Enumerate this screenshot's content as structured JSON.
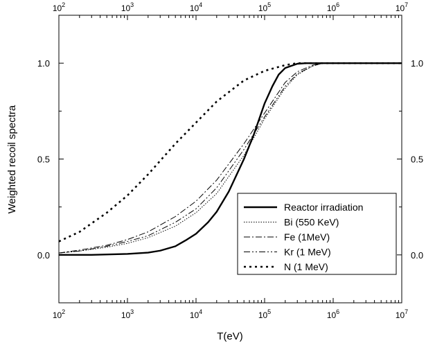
{
  "chart_data": {
    "type": "line",
    "xlabel": "T(eV)",
    "ylabel": "Weighted recoil spectra",
    "x_scale": "log",
    "xlim": [
      100,
      10000000
    ],
    "ylim": [
      -0.25,
      1.25
    ],
    "grid": false,
    "legend_position": "bottom-right",
    "x_ticks": [
      {
        "value": 100,
        "base": "10",
        "exp": "2"
      },
      {
        "value": 1000,
        "base": "10",
        "exp": "3"
      },
      {
        "value": 10000,
        "base": "10",
        "exp": "4"
      },
      {
        "value": 100000,
        "base": "10",
        "exp": "5"
      },
      {
        "value": 1000000,
        "base": "10",
        "exp": "6"
      },
      {
        "value": 10000000,
        "base": "10",
        "exp": "7"
      }
    ],
    "y_ticks": [
      {
        "value": 0.0,
        "label": "0.0"
      },
      {
        "value": 0.5,
        "label": "0.5"
      },
      {
        "value": 1.0,
        "label": "1.0"
      }
    ],
    "series": [
      {
        "name": "Reactor irradiation",
        "color": "#000000",
        "style": "solid-thick",
        "x": [
          100,
          300,
          1000,
          2000,
          3000,
          5000,
          7000,
          10000,
          15000,
          20000,
          30000,
          50000,
          70000,
          100000,
          130000,
          160000,
          200000,
          300000,
          400000,
          10000000
        ],
        "y": [
          0.0,
          0.0,
          0.005,
          0.012,
          0.022,
          0.045,
          0.075,
          0.11,
          0.17,
          0.225,
          0.33,
          0.5,
          0.63,
          0.79,
          0.88,
          0.94,
          0.975,
          0.997,
          1.0,
          1.0
        ]
      },
      {
        "name": "Bi (550 KeV)",
        "color": "#000000",
        "style": "dotted",
        "x": [
          100,
          200,
          500,
          1000,
          2000,
          5000,
          10000,
          20000,
          50000,
          100000,
          200000,
          300000,
          500000,
          700000,
          10000000
        ],
        "y": [
          0.01,
          0.02,
          0.04,
          0.06,
          0.09,
          0.15,
          0.22,
          0.32,
          0.52,
          0.71,
          0.87,
          0.94,
          0.985,
          1.0,
          1.0
        ]
      },
      {
        "name": "Fe (1MeV)",
        "color": "#000000",
        "style": "dashdot",
        "x": [
          100,
          200,
          500,
          1000,
          2000,
          5000,
          10000,
          20000,
          50000,
          100000,
          200000,
          300000,
          500000,
          700000,
          10000000
        ],
        "y": [
          0.01,
          0.025,
          0.05,
          0.08,
          0.12,
          0.2,
          0.28,
          0.39,
          0.58,
          0.74,
          0.9,
          0.955,
          0.99,
          1.0,
          1.0
        ]
      },
      {
        "name": "Kr (1 MeV)",
        "color": "#000000",
        "style": "dashdotdot",
        "x": [
          100,
          200,
          500,
          1000,
          2000,
          5000,
          10000,
          20000,
          50000,
          100000,
          200000,
          300000,
          500000,
          700000,
          10000000
        ],
        "y": [
          0.01,
          0.02,
          0.045,
          0.07,
          0.1,
          0.17,
          0.24,
          0.35,
          0.55,
          0.72,
          0.88,
          0.945,
          0.985,
          1.0,
          1.0
        ]
      },
      {
        "name": "N (1 MeV)",
        "color": "#000000",
        "style": "dotted-thick",
        "x": [
          100,
          200,
          500,
          1000,
          2000,
          5000,
          10000,
          20000,
          50000,
          100000,
          200000,
          300000,
          10000000
        ],
        "y": [
          0.07,
          0.12,
          0.22,
          0.31,
          0.42,
          0.58,
          0.69,
          0.8,
          0.91,
          0.96,
          0.99,
          1.0,
          1.0
        ]
      }
    ]
  }
}
